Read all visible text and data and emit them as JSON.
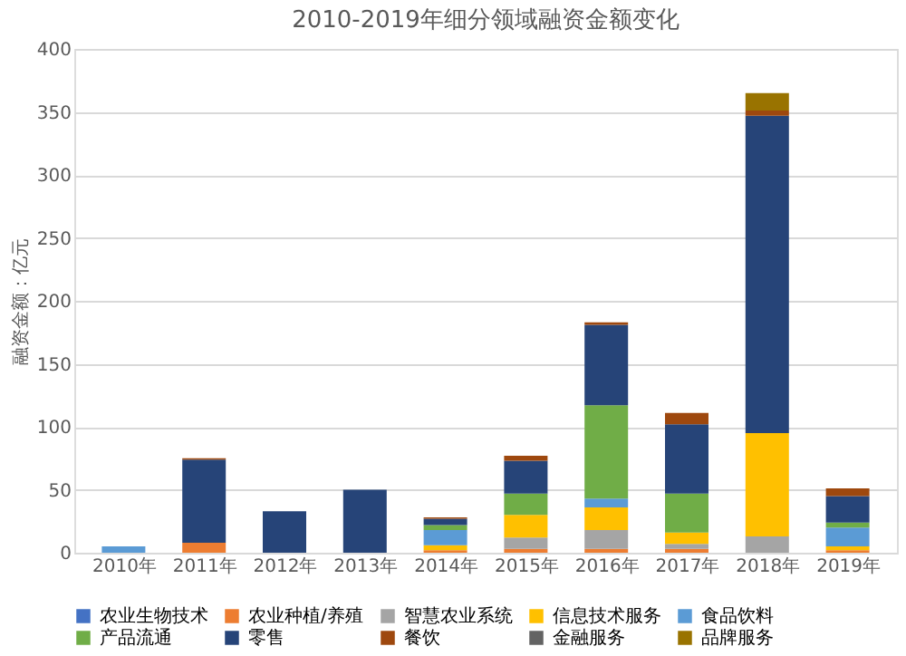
{
  "chart_data": {
    "type": "bar",
    "stacked": true,
    "title": "2010-2019年细分领域融资金额变化",
    "ylabel": "融资金额：亿元",
    "categories": [
      "2010年",
      "2011年",
      "2012年",
      "2013年",
      "2014年",
      "2015年",
      "2016年",
      "2017年",
      "2018年",
      "2019年"
    ],
    "ylim": [
      0,
      400
    ],
    "yticks": [
      0,
      50,
      100,
      150,
      200,
      250,
      300,
      350,
      400
    ],
    "grid": "y",
    "legend": "bottom",
    "series": [
      {
        "name": "农业生物技术",
        "color": "#4472c4",
        "values": [
          null,
          null,
          null,
          null,
          null,
          null,
          null,
          null,
          null,
          null
        ]
      },
      {
        "name": "农业种植/养殖",
        "color": "#ed7d31",
        "values": [
          null,
          8,
          null,
          null,
          2,
          3,
          3,
          3,
          null,
          2
        ]
      },
      {
        "name": "智慧农业系统",
        "color": "#a5a5a5",
        "values": [
          null,
          null,
          null,
          null,
          null,
          9,
          15,
          4,
          13,
          null
        ]
      },
      {
        "name": "信息技术服务",
        "color": "#ffc000",
        "values": [
          null,
          null,
          null,
          null,
          4,
          18,
          18,
          9,
          82,
          3
        ]
      },
      {
        "name": "食品饮料",
        "color": "#5b9bd5",
        "values": [
          5,
          null,
          null,
          null,
          12,
          null,
          7,
          null,
          null,
          15
        ]
      },
      {
        "name": "产品流通",
        "color": "#70ad47",
        "values": [
          null,
          null,
          null,
          null,
          4,
          17,
          74,
          31,
          null,
          4
        ]
      },
      {
        "name": "零售",
        "color": "#264478",
        "values": [
          null,
          66,
          33,
          50,
          5,
          26,
          64,
          55,
          252,
          21
        ]
      },
      {
        "name": "餐饮",
        "color": "#9e480e",
        "values": [
          null,
          1,
          null,
          null,
          1,
          4,
          2,
          9,
          4,
          6
        ]
      },
      {
        "name": "金融服务",
        "color": "#636363",
        "values": [
          null,
          null,
          null,
          null,
          null,
          null,
          null,
          null,
          null,
          null
        ]
      },
      {
        "name": "品牌服务",
        "color": "#997300",
        "values": [
          null,
          null,
          null,
          null,
          null,
          null,
          null,
          null,
          14,
          null
        ]
      }
    ]
  }
}
